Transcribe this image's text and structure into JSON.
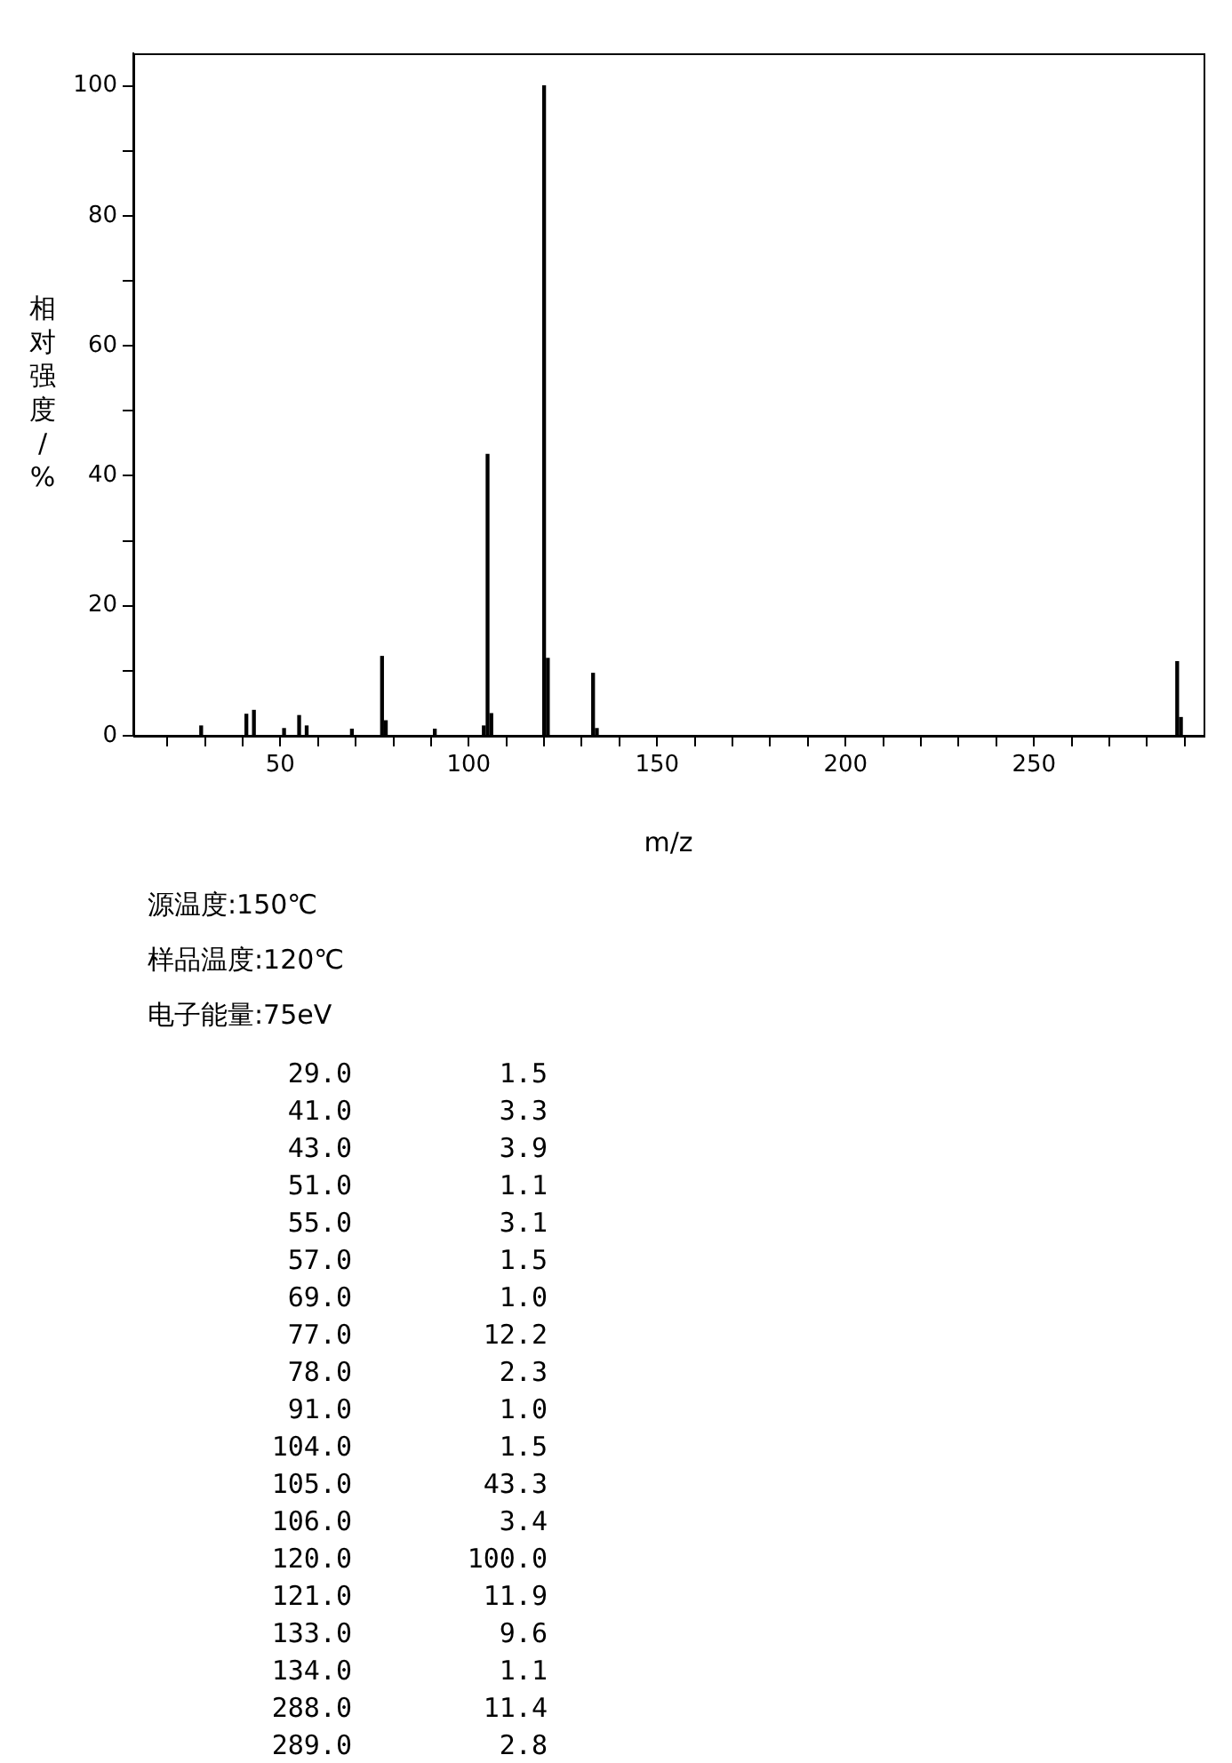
{
  "chart_data": {
    "type": "bar",
    "xlabel": "m/z",
    "ylabel": "相对强度/%",
    "x": [
      29,
      41,
      43,
      51,
      55,
      57,
      69,
      77,
      78,
      91,
      104,
      105,
      106,
      120,
      121,
      133,
      134,
      288,
      289
    ],
    "values": [
      1.5,
      3.3,
      3.9,
      1.1,
      3.1,
      1.5,
      1.0,
      12.2,
      2.3,
      1.0,
      1.5,
      43.3,
      3.4,
      100.0,
      11.9,
      9.6,
      1.1,
      11.4,
      2.8
    ],
    "color": "#000000",
    "xlim": [
      11,
      295
    ],
    "xticks": [
      {
        "value": 20,
        "label": null
      },
      {
        "value": 30,
        "label": null
      },
      {
        "value": 40,
        "label": null
      },
      50,
      {
        "value": 60,
        "label": null
      },
      {
        "value": 70,
        "label": null
      },
      {
        "value": 80,
        "label": null
      },
      {
        "value": 90,
        "label": null
      },
      100,
      {
        "value": 110,
        "label": null
      },
      {
        "value": 120,
        "label": null
      },
      {
        "value": 130,
        "label": null
      },
      {
        "value": 140,
        "label": null
      },
      150,
      {
        "value": 160,
        "label": null
      },
      {
        "value": 170,
        "label": null
      },
      {
        "value": 180,
        "label": null
      },
      {
        "value": 190,
        "label": null
      },
      200,
      {
        "value": 210,
        "label": null
      },
      {
        "value": 220,
        "label": null
      },
      {
        "value": 230,
        "label": null
      },
      {
        "value": 240,
        "label": null
      },
      250,
      {
        "value": 260,
        "label": null
      },
      {
        "value": 270,
        "label": null
      },
      {
        "value": 280,
        "label": null
      },
      {
        "value": 290,
        "label": null
      }
    ],
    "ylim": [
      0,
      105
    ],
    "yticks": [
      0,
      {
        "value": 10,
        "label": null
      },
      20,
      {
        "value": 30,
        "label": null
      },
      40,
      {
        "value": 50,
        "label": null
      },
      60,
      {
        "value": 70,
        "label": null
      },
      80,
      {
        "value": 90,
        "label": null
      },
      100
    ],
    "grid": false,
    "legend": false,
    "annotations": [
      "源温度:150℃",
      "样品温度:120℃",
      "电子能量:75eV",
      "29.0 1.5",
      "41.0 3.3",
      "43.0 3.9",
      "51.0 1.1",
      "55.0 3.1",
      "57.0 1.5",
      "69.0 1.0",
      "77.0 12.2",
      "78.0 2.3",
      "91.0 1.0",
      "104.0 1.5",
      "105.0 43.3",
      "106.0 3.4",
      "120.0 100.0",
      "121.0 11.9",
      "133.0 9.6",
      "134.0 1.1",
      "288.0 11.4",
      "289.0 2.8"
    ]
  }
}
